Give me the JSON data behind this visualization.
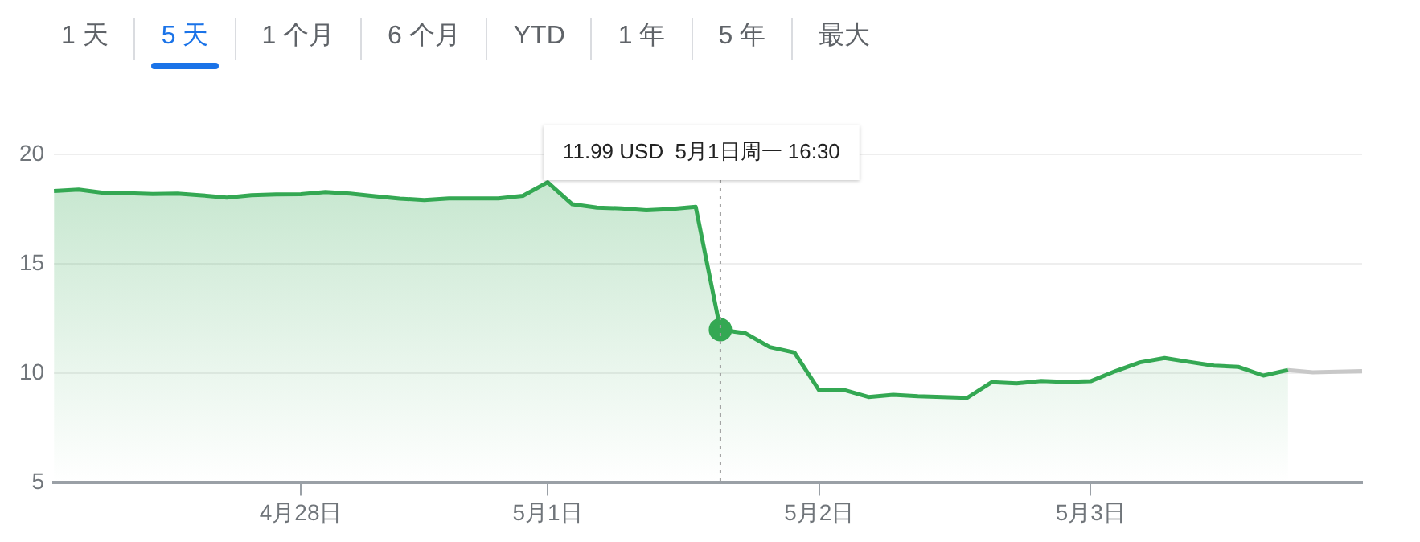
{
  "chart_data": {
    "type": "area",
    "ylim": [
      5,
      20
    ],
    "yticks": [
      5,
      10,
      15,
      20
    ],
    "grid": "y",
    "legend": false,
    "marker": "none",
    "categories": [
      null,
      null,
      null,
      null,
      null,
      null,
      null,
      null,
      null,
      null,
      "4月28日",
      null,
      null,
      null,
      null,
      null,
      null,
      null,
      null,
      null,
      "5月1日",
      null,
      null,
      null,
      null,
      null,
      null,
      null,
      null,
      null,
      null,
      "5月2日",
      null,
      null,
      null,
      null,
      null,
      null,
      null,
      null,
      null,
      null,
      "5月3日",
      null,
      null,
      null,
      null,
      null,
      null,
      null,
      null,
      null,
      null,
      null
    ],
    "series": [
      {
        "color": "#34a853",
        "values": [
          18.33,
          18.39,
          18.25,
          18.23,
          18.19,
          18.21,
          18.13,
          18.03,
          18.14,
          18.17,
          18.18,
          18.28,
          18.21,
          18.09,
          17.98,
          17.92,
          17.99,
          17.99,
          17.99,
          18.11,
          18.73,
          17.72,
          17.57,
          17.53,
          17.45,
          17.5,
          17.6,
          11.99,
          11.84,
          11.2,
          10.95,
          9.22,
          9.24,
          8.92,
          9.02,
          8.95,
          8.92,
          8.88,
          9.6,
          9.54,
          9.65,
          9.61,
          9.64,
          10.1,
          10.5,
          10.7,
          10.52,
          10.35,
          10.29,
          9.9,
          10.15,
          null,
          null,
          null
        ]
      },
      {
        "type": "line",
        "color": "#c8c8c8",
        "values": [
          null,
          null,
          null,
          null,
          null,
          null,
          null,
          null,
          null,
          null,
          null,
          null,
          null,
          null,
          null,
          null,
          null,
          null,
          null,
          null,
          null,
          null,
          null,
          null,
          null,
          null,
          null,
          null,
          null,
          null,
          null,
          null,
          null,
          null,
          null,
          null,
          null,
          null,
          null,
          null,
          null,
          null,
          null,
          null,
          null,
          null,
          null,
          null,
          null,
          null,
          10.15,
          10.05,
          10.07,
          10.1
        ]
      },
      {
        "type": "scatter",
        "color": "#34a853",
        "marker": "circle",
        "values": [
          null,
          null,
          null,
          null,
          null,
          null,
          null,
          null,
          null,
          null,
          null,
          null,
          null,
          null,
          null,
          null,
          null,
          null,
          null,
          null,
          null,
          null,
          null,
          null,
          null,
          null,
          null,
          11.99,
          null,
          null,
          null,
          null,
          null,
          null,
          null,
          null,
          null,
          null,
          null,
          null,
          null,
          null,
          null,
          null,
          null,
          null,
          null,
          null,
          null,
          null,
          null,
          null,
          null,
          null
        ]
      }
    ],
    "annotations": [
      "1 天",
      "5 天",
      "1 个月",
      "6 个月",
      "YTD",
      "1 年",
      "5 年",
      "最大",
      "11.99 USD  5月1日周一 16:30"
    ]
  }
}
